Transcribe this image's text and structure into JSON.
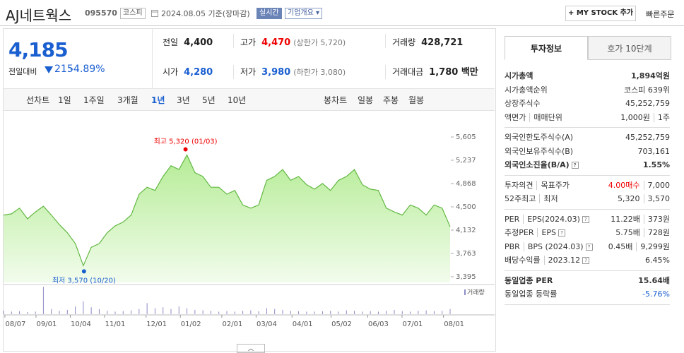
{
  "header": {
    "name": "AJ네트웍스",
    "code": "095570",
    "market": "코스피",
    "date": "2024.08.05 기준(장마감)",
    "realtime": "실시간",
    "overview": "기업개요",
    "my_stock": "+ MY STOCK 추가",
    "quick_order": "빠른주문"
  },
  "price": {
    "current": "4,185",
    "change_label": "전일대비",
    "change": "215",
    "change_pct": "-4.89%"
  },
  "summary": [
    [
      {
        "label": "전일",
        "value": "4,400",
        "tone": "flat"
      },
      {
        "label": "고가",
        "value": "4,470",
        "extra": "(상한가 5,720)",
        "tone": "up"
      },
      {
        "label": "거래량",
        "value": "428,721",
        "tone": "flat"
      }
    ],
    [
      {
        "label": "시가",
        "value": "4,280",
        "tone": "down"
      },
      {
        "label": "저가",
        "value": "3,980",
        "extra": "(하한가 3,080)",
        "tone": "down"
      },
      {
        "label": "거래대금",
        "value": "1,780 백만",
        "tone": "flat"
      }
    ]
  ],
  "tabs": {
    "line_label": "선차트",
    "line_options": [
      "1일",
      "1주일",
      "3개월",
      "1년",
      "3년",
      "5년",
      "10년"
    ],
    "selected_index": 3,
    "candle_label": "봉차트",
    "candle_options": [
      "일봉",
      "주봉",
      "월봉"
    ]
  },
  "chart_data": {
    "type": "line",
    "color": "#62b843",
    "values": [
      4370,
      4390,
      4480,
      4310,
      4420,
      4510,
      4370,
      4220,
      4090,
      3920,
      3570,
      3860,
      3920,
      4090,
      4200,
      4260,
      4370,
      4700,
      4810,
      4760,
      4980,
      5150,
      5090,
      5320,
      5040,
      4980,
      4810,
      4810,
      4700,
      4760,
      4530,
      4480,
      4530,
      4920,
      4980,
      5090,
      4920,
      4980,
      4850,
      4780,
      4870,
      4760,
      4920,
      4980,
      5090,
      4850,
      4780,
      4760,
      4480,
      4420,
      4370,
      4530,
      4480,
      4370,
      4530,
      4480,
      4185
    ],
    "volume": [
      40000,
      30000,
      35000,
      25000,
      30000,
      320000,
      60000,
      40000,
      50000,
      90000,
      150000,
      80000,
      60000,
      40000,
      30000,
      35000,
      45000,
      60000,
      130000,
      70000,
      80000,
      60000,
      90000,
      70000,
      50000,
      45000,
      40000,
      30000,
      35000,
      30000,
      40000,
      45000,
      35000,
      70000,
      60000,
      50000,
      40000,
      35000,
      30000,
      30000,
      35000,
      40000,
      30000,
      45000,
      40000,
      30000,
      35000,
      30000,
      40000,
      50000,
      35000,
      30000,
      40000,
      45000,
      35000,
      40000,
      60000
    ],
    "volume_lim": [
      0,
      330000
    ],
    "volume_label": "거래량",
    "ylim": [
      3395,
      5605
    ],
    "yticks": [
      {
        "value": 5605,
        "label": "5,605"
      },
      {
        "value": 5237,
        "label": "5,237"
      },
      {
        "value": 4868,
        "label": "4,868"
      },
      {
        "value": 4500,
        "label": "4,500"
      },
      {
        "value": 4132,
        "label": "4,132"
      },
      {
        "value": 3763,
        "label": "3,763"
      },
      {
        "value": 3395,
        "label": "3,395"
      }
    ],
    "xlim": [
      0,
      56
    ],
    "xticks": [
      {
        "value": 1.5,
        "label": "08/07"
      },
      {
        "value": 5.4,
        "label": "09/01"
      },
      {
        "value": 9.7,
        "label": "10/04"
      },
      {
        "value": 14,
        "label": "11/01"
      },
      {
        "value": 19.2,
        "label": "12/01"
      },
      {
        "value": 23.5,
        "label": "01/02"
      },
      {
        "value": 28.7,
        "label": "02/01"
      },
      {
        "value": 33,
        "label": "03/04"
      },
      {
        "value": 37.5,
        "label": "04/01"
      },
      {
        "value": 42.4,
        "label": "05/02"
      },
      {
        "value": 47,
        "label": "06/03"
      },
      {
        "value": 51.3,
        "label": "07/01"
      },
      {
        "value": 56.5,
        "label": "08/01"
      }
    ],
    "annotations": {
      "high": "최고 5,320 (01/03)",
      "low": "최저 3,570 (10/20)"
    }
  },
  "info_panel": {
    "tabs": [
      "투자정보",
      "호가 10단계"
    ],
    "selected_index": 0,
    "groups": [
      [
        {
          "label": [
            "시가총액"
          ],
          "value": [
            "1,894억원"
          ],
          "bold": true
        },
        {
          "label": [
            "시가총액순위"
          ],
          "value": [
            "코스피 639위"
          ]
        },
        {
          "label": [
            "상장주식수"
          ],
          "value": [
            "45,252,759"
          ]
        },
        {
          "label": [
            "액면가",
            "매매단위"
          ],
          "value": [
            "1,000원",
            "1주"
          ]
        }
      ],
      [
        {
          "label": [
            "외국인한도주식수(A)"
          ],
          "value": [
            "45,252,759"
          ]
        },
        {
          "label": [
            "외국인보유주식수(B)"
          ],
          "value": [
            "703,161"
          ]
        },
        {
          "label": [
            "외국인소진율(B/A)"
          ],
          "value": [
            "1.55%"
          ],
          "bold": true,
          "help": true
        }
      ],
      [
        {
          "label": [
            "투자의견",
            "목표주가"
          ],
          "value": [
            "4.00매수",
            "7,000"
          ],
          "tone": "up"
        },
        {
          "label": [
            "52주최고",
            "최저"
          ],
          "value": [
            "5,320",
            "3,570"
          ]
        }
      ],
      [
        {
          "label": [
            "PER",
            "EPS(2024.03)"
          ],
          "value": [
            "11.22배",
            "373원"
          ],
          "help": true
        },
        {
          "label": [
            "추정PER",
            "EPS"
          ],
          "value": [
            "5.75배",
            "728원"
          ],
          "help": true
        },
        {
          "label": [
            "PBR",
            "BPS (2024.03)"
          ],
          "value": [
            "0.45배",
            "9,299원"
          ],
          "help": true
        },
        {
          "label": [
            "배당수익률",
            "2023.12"
          ],
          "value": [
            "6.45%"
          ],
          "help": true
        }
      ],
      [
        {
          "label": [
            "동일업종 PER"
          ],
          "value": [
            "15.64배"
          ],
          "bold": true
        },
        {
          "label": [
            "동일업종 등락률"
          ],
          "value": [
            "-5.76%"
          ],
          "tone": "down"
        }
      ]
    ]
  }
}
